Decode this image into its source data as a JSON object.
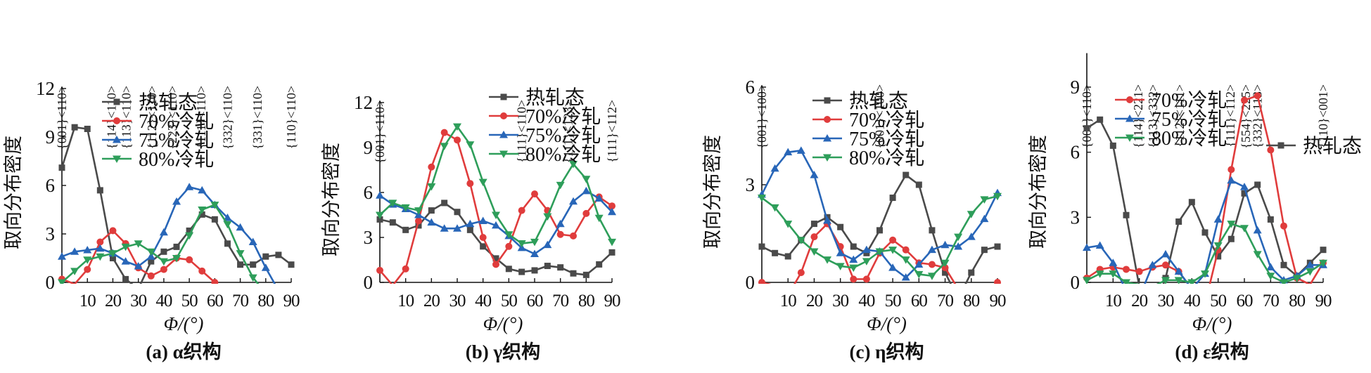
{
  "figure": {
    "x_axis_label": "Φ/(°)",
    "y_axis_label": "取向分布密度"
  },
  "chart_data": [
    {
      "type": "line",
      "panel": "a",
      "caption": "(a) α织构",
      "xlabel": "Φ/(°)",
      "ylabel": "取向分布密度",
      "xlim": [
        0,
        90
      ],
      "ylim": [
        0,
        12
      ],
      "y_ticks": [
        0,
        3,
        6,
        9,
        12
      ],
      "x_ticks": [
        10,
        20,
        30,
        40,
        50,
        60,
        70,
        80,
        90
      ],
      "grid": false,
      "legend_position": "top-left",
      "texture_annotations": [
        {
          "label": "{001}<110>",
          "x": 0
        },
        {
          "label": "{114}<110>",
          "x": 19.5
        },
        {
          "label": "{113}<110>",
          "x": 25.2
        },
        {
          "label": "{112}<110>",
          "x": 35.3
        },
        {
          "label": "{223}<110>",
          "x": 43.3
        },
        {
          "label": "{111}<110>",
          "x": 54.7
        },
        {
          "label": "{332}<110>",
          "x": 65.0
        },
        {
          "label": "{331}<110>",
          "x": 76.7
        },
        {
          "label": "{110}<110>",
          "x": 90
        }
      ],
      "x": [
        0,
        5,
        10,
        15,
        20,
        25,
        30,
        35,
        40,
        45,
        50,
        55,
        60,
        65,
        70,
        75,
        80,
        85,
        90
      ],
      "series": [
        {
          "name": "热轧态",
          "color": "#4a4a4a",
          "marker": "square",
          "values": [
            7.1,
            9.6,
            9.5,
            5.7,
            1.5,
            0.2,
            -0.4,
            1.3,
            1.9,
            2.2,
            3.2,
            4.2,
            3.9,
            2.4,
            1.1,
            1.1,
            1.6,
            1.7,
            1.1
          ]
        },
        {
          "name": "70%冷轧",
          "color": "#e03c3c",
          "marker": "circle",
          "values": [
            0.2,
            -0.1,
            0.8,
            2.5,
            3.2,
            2.4,
            0.9,
            0.4,
            0.8,
            1.5,
            1.4,
            0.7,
            0.0,
            null,
            null,
            null,
            null,
            null,
            null
          ]
        },
        {
          "name": "75%冷轧",
          "color": "#2866b8",
          "marker": "triangle-up",
          "values": [
            1.6,
            1.9,
            2.0,
            2.1,
            1.8,
            1.3,
            1.0,
            1.6,
            3.1,
            5.0,
            5.9,
            5.7,
            4.8,
            4.0,
            3.4,
            2.5,
            0.9,
            -0.5,
            null
          ]
        },
        {
          "name": "80%冷轧",
          "color": "#2e9e5a",
          "marker": "triangle-down",
          "values": [
            0.0,
            0.7,
            1.4,
            1.6,
            1.8,
            2.2,
            2.4,
            1.9,
            1.3,
            1.5,
            2.9,
            4.5,
            4.8,
            3.6,
            1.8,
            0.3,
            -0.7,
            null,
            null
          ]
        }
      ]
    },
    {
      "type": "line",
      "panel": "b",
      "caption": "(b) γ织构",
      "xlabel": "Φ/(°)",
      "ylabel": "取向分布密度",
      "xlim": [
        0,
        90
      ],
      "ylim": [
        0,
        12
      ],
      "y_ticks": [
        0,
        3,
        6,
        9,
        12
      ],
      "x_ticks": [
        10,
        20,
        30,
        40,
        50,
        60,
        70,
        80,
        90
      ],
      "grid": false,
      "legend_position": "top-right",
      "texture_annotations": [
        {
          "label": "{001}<110>",
          "x": 0
        },
        {
          "label": "{111}<110>",
          "x": 55
        },
        {
          "label": "{111}<123>",
          "x": 73
        },
        {
          "label": "{111}<112>",
          "x": 90
        }
      ],
      "x": [
        0,
        5,
        10,
        15,
        20,
        25,
        30,
        35,
        40,
        45,
        50,
        55,
        60,
        65,
        70,
        75,
        80,
        85,
        90
      ],
      "series": [
        {
          "name": "热轧态",
          "color": "#4a4a4a",
          "marker": "square",
          "values": [
            4.2,
            4.0,
            3.5,
            3.8,
            4.8,
            5.3,
            4.7,
            3.5,
            2.4,
            1.6,
            0.9,
            0.7,
            0.8,
            1.1,
            1.0,
            0.6,
            0.5,
            1.2,
            2.0
          ]
        },
        {
          "name": "70%冷轧",
          "color": "#e03c3c",
          "marker": "circle",
          "values": [
            0.8,
            -0.2,
            0.9,
            4.1,
            7.7,
            10.0,
            9.5,
            6.6,
            3.0,
            1.2,
            2.4,
            4.8,
            5.9,
            4.8,
            3.2,
            3.1,
            4.6,
            5.7,
            5.1
          ]
        },
        {
          "name": "75%冷轧",
          "color": "#2866b8",
          "marker": "triangle-up",
          "values": [
            5.8,
            5.2,
            4.9,
            4.5,
            4.0,
            3.6,
            3.6,
            3.9,
            4.1,
            3.8,
            3.1,
            2.3,
            1.9,
            2.5,
            3.9,
            5.4,
            6.1,
            5.6,
            4.7
          ]
        },
        {
          "name": "80%冷轧",
          "color": "#2e9e5a",
          "marker": "triangle-down",
          "values": [
            4.5,
            5.3,
            5.0,
            4.8,
            6.4,
            9.1,
            10.4,
            9.2,
            6.7,
            4.5,
            3.2,
            2.6,
            2.7,
            4.4,
            6.5,
            7.9,
            6.9,
            4.3,
            2.7
          ]
        }
      ]
    },
    {
      "type": "line",
      "panel": "c",
      "caption": "(c) η织构",
      "xlabel": "Φ/(°)",
      "ylabel": "取向分布密度",
      "xlim": [
        0,
        90
      ],
      "ylim": [
        0,
        6
      ],
      "y_ticks": [
        0,
        3,
        6
      ],
      "x_ticks": [
        10,
        20,
        30,
        40,
        50,
        60,
        70,
        80,
        90
      ],
      "grid": false,
      "legend_position": "top-right",
      "texture_annotations": [
        {
          "label": "{001}<100>",
          "x": 0
        },
        {
          "label": "{001}<100>",
          "x": 45
        }
      ],
      "x": [
        0,
        5,
        10,
        15,
        20,
        25,
        30,
        35,
        40,
        45,
        50,
        55,
        60,
        65,
        70,
        75,
        80,
        85,
        90
      ],
      "series": [
        {
          "name": "热轧态",
          "color": "#4a4a4a",
          "marker": "square",
          "values": [
            1.1,
            0.9,
            0.8,
            1.3,
            1.8,
            2.0,
            1.7,
            1.1,
            0.9,
            1.6,
            2.6,
            3.3,
            3.0,
            1.6,
            0.3,
            -0.5,
            0.3,
            1.0,
            1.1
          ]
        },
        {
          "name": "70%冷轧",
          "color": "#e03c3c",
          "marker": "circle",
          "values": [
            0.0,
            -0.1,
            -0.4,
            0.3,
            1.4,
            1.8,
            1.1,
            0.1,
            0.1,
            0.9,
            1.3,
            1.0,
            0.6,
            0.55,
            0.45,
            -0.2,
            null,
            null,
            0.0
          ]
        },
        {
          "name": "75%冷轧",
          "color": "#2866b8",
          "marker": "triangle-up",
          "values": [
            2.7,
            3.5,
            4.0,
            4.05,
            3.3,
            1.9,
            0.9,
            0.7,
            1.0,
            0.95,
            0.45,
            0.15,
            0.55,
            1.0,
            1.15,
            1.1,
            1.4,
            1.95,
            2.75
          ]
        },
        {
          "name": "80%冷轧",
          "color": "#2e9e5a",
          "marker": "triangle-down",
          "values": [
            2.6,
            2.3,
            1.8,
            1.3,
            0.95,
            0.7,
            0.5,
            0.45,
            0.65,
            0.95,
            1.0,
            0.7,
            0.25,
            0.2,
            0.6,
            1.4,
            2.1,
            2.55,
            2.65
          ]
        }
      ]
    },
    {
      "type": "line",
      "panel": "d",
      "caption": "(d) ε织构",
      "xlabel": "Φ/(°)",
      "ylabel": "取向分布密度",
      "xlim": [
        0,
        90
      ],
      "ylim": [
        0,
        10.5
      ],
      "y_ticks": [
        0,
        3,
        6,
        9
      ],
      "x_ticks": [
        10,
        20,
        30,
        40,
        50,
        60,
        70,
        80,
        90
      ],
      "grid": false,
      "legend_position": "top-center",
      "texture_annotations": [
        {
          "label": "{001}<110>",
          "x": 0
        },
        {
          "label": "{114}<221>",
          "x": 19.5
        },
        {
          "label": "{113}<332>",
          "x": 25.2
        },
        {
          "label": "{112}<111>",
          "x": 35.3
        },
        {
          "label": "{111}<112>",
          "x": 54.7
        },
        {
          "label": "{554}<225>",
          "x": 60.5
        },
        {
          "label": "{332}<113>",
          "x": 65.0
        },
        {
          "label": "{110}<001>",
          "x": 90
        }
      ],
      "x": [
        0,
        5,
        10,
        15,
        20,
        25,
        30,
        35,
        40,
        45,
        50,
        55,
        60,
        65,
        70,
        75,
        80,
        85,
        90
      ],
      "series": [
        {
          "name": "热轧态",
          "color": "#4a4a4a",
          "marker": "square",
          "values": [
            7.1,
            7.5,
            6.3,
            3.1,
            -0.2,
            -1.5,
            0.2,
            2.8,
            3.7,
            2.3,
            1.2,
            2.0,
            4.1,
            4.5,
            2.9,
            0.8,
            0.3,
            0.9,
            1.5
          ]
        },
        {
          "name": "70%冷轧",
          "color": "#e03c3c",
          "marker": "circle",
          "values": [
            0.2,
            0.6,
            0.7,
            0.6,
            0.5,
            0.7,
            0.8,
            0.5,
            -0.3,
            -1.0,
            1.5,
            5.2,
            8.4,
            8.6,
            6.1,
            2.6,
            0.2,
            -0.1,
            0.9
          ]
        },
        {
          "name": "75%冷轧",
          "color": "#2866b8",
          "marker": "triangle-up",
          "values": [
            1.6,
            1.7,
            0.9,
            -0.4,
            -0.7,
            0.8,
            1.3,
            0.5,
            -0.3,
            0.4,
            2.9,
            4.7,
            4.4,
            2.4,
            0.7,
            0.1,
            0.3,
            0.8,
            0.8
          ]
        },
        {
          "name": "80%冷轧",
          "color": "#2e9e5a",
          "marker": "triangle-down",
          "values": [
            0.1,
            0.4,
            0.4,
            0.0,
            -0.1,
            -0.2,
            0.1,
            0.1,
            0.0,
            0.4,
            1.7,
            2.7,
            2.5,
            1.3,
            0.3,
            0.0,
            0.2,
            0.5,
            0.9
          ]
        }
      ]
    }
  ]
}
